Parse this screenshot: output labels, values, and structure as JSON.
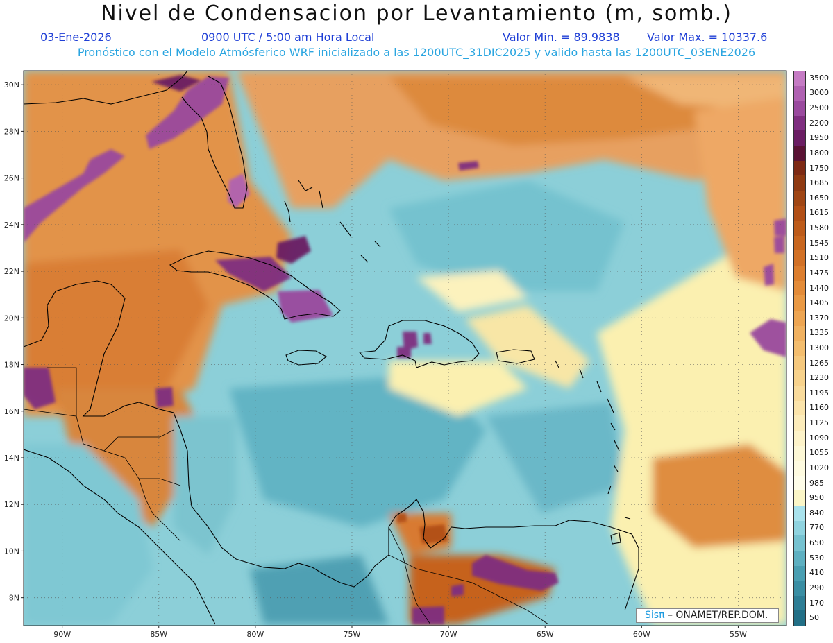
{
  "title": "Nivel de Condensacion por Levantamiento (m, somb.)",
  "header": {
    "date": "03-Ene-2026",
    "time": "0900 UTC / 5:00 am Hora Local",
    "value_min": "Valor Min. = 89.9838",
    "value_max": "Valor Max. = 10337.6",
    "forecast": "Pronóstico con el Modelo Atmósferico WRF inicializado a las 1200UTC_31DIC2025 y valido hasta las  1200UTC_03ENE2026"
  },
  "map": {
    "lat_labels": [
      "30N",
      "28N",
      "26N",
      "24N",
      "22N",
      "20N",
      "18N",
      "16N",
      "14N",
      "12N",
      "10N",
      "8N"
    ],
    "lon_labels": [
      "90W",
      "85W",
      "80W",
      "75W",
      "70W",
      "65W",
      "60W",
      "55W"
    ],
    "lat_values": [
      30,
      28,
      26,
      24,
      22,
      20,
      18,
      16,
      14,
      12,
      10,
      8
    ],
    "lon_values": [
      -90,
      -85,
      -80,
      -75,
      -70,
      -65,
      -60,
      -55
    ]
  },
  "colorbar": {
    "labels": [
      "3500",
      "3000",
      "2500",
      "2200",
      "1950",
      "1800",
      "1750",
      "1685",
      "1650",
      "1615",
      "1580",
      "1545",
      "1510",
      "1475",
      "1440",
      "1405",
      "1370",
      "1335",
      "1300",
      "1265",
      "1230",
      "1195",
      "1160",
      "1125",
      "1090",
      "1055",
      "1020",
      "985",
      "950",
      "840",
      "770",
      "650",
      "530",
      "410",
      "290",
      "170",
      "50"
    ],
    "colors": [
      "#c57bc4",
      "#b062b2",
      "#9a4a9e",
      "#7f2f80",
      "#6b1e63",
      "#5a1334",
      "#7d2a14",
      "#8f3a12",
      "#a04614",
      "#b24f16",
      "#bd5b1a",
      "#c8661f",
      "#d27126",
      "#dc7e2e",
      "#e38b38",
      "#e99944",
      "#eda552",
      "#f0b160",
      "#f3bd6e",
      "#f5c87d",
      "#f7d28c",
      "#f9db9c",
      "#fbe4ab",
      "#fcecbb",
      "#fdf3c9",
      "#fdf8d6",
      "#fefbe0",
      "#fefde9",
      "#fbf6c7",
      "#a9e2ec",
      "#8fd3df",
      "#76c2d0",
      "#5eb0c1",
      "#4a9fb2",
      "#3a8ea3",
      "#2e7e95",
      "#226f86"
    ]
  },
  "credit": {
    "brand": "Sisπ",
    "text": "– ONAMET/REP.DOM."
  },
  "colors": {
    "ocean_base": "#8ccfd8",
    "ocean_dark": "#5eb0c1",
    "land_orange": "#e08a3c",
    "high_purple": "#9a4a9e",
    "yellow": "#fbf2b8"
  }
}
